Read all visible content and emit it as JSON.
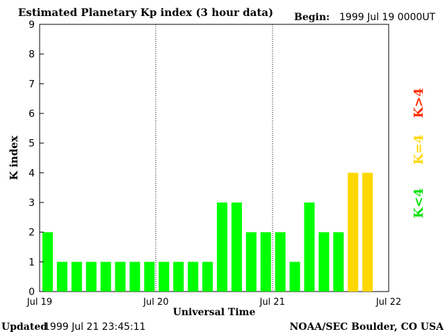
{
  "chart_data": {
    "type": "bar",
    "title": "Estimated Planetary Kp index (3 hour data)",
    "begin_label": "Begin:",
    "begin_value": "1999 Jul 19 0000UT",
    "ylabel": "K index",
    "xlabel": "Universal Time",
    "ylim": [
      0,
      9
    ],
    "y_ticks": [
      "0",
      "1",
      "2",
      "3",
      "4",
      "5",
      "6",
      "7",
      "8",
      "9"
    ],
    "x_ticks": [
      "Jul 19",
      "Jul 20",
      "Jul 21",
      "Jul 22"
    ],
    "x_range_days": 3,
    "intervals_per_day": 8,
    "values": [
      2,
      1,
      1,
      1,
      1,
      1,
      1,
      1,
      1,
      1,
      1,
      1,
      3,
      3,
      2,
      2,
      2,
      1,
      3,
      2,
      2,
      4,
      4
    ],
    "colors": {
      "low": "#00ff00",
      "equal": "#ffd700",
      "high": "#ff2a00"
    },
    "legend": {
      "low": "K<4",
      "equal": "K=4",
      "high": "K>4"
    }
  },
  "footer": {
    "updated_label": "Updated",
    "updated_value": "1999 Jul 21 23:45:11",
    "credit": "NOAA/SEC Boulder, CO USA"
  }
}
